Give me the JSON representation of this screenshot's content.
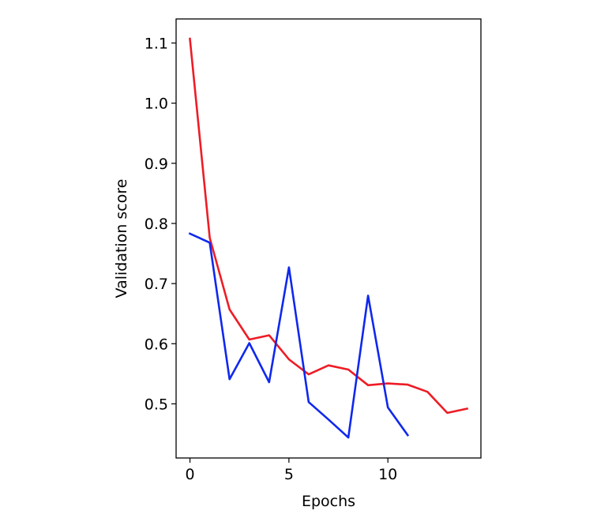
{
  "chart_data": {
    "type": "line",
    "xlabel": "Epochs",
    "ylabel": "Validation score",
    "xlim": [
      -0.7,
      14.7
    ],
    "ylim": [
      0.41,
      1.14
    ],
    "xticks": [
      0,
      5,
      10
    ],
    "yticks": [
      0.5,
      0.6,
      0.7,
      0.8,
      0.9,
      1.0,
      1.1
    ],
    "ytick_labels": [
      "0.5",
      "0.6",
      "0.7",
      "0.8",
      "0.9",
      "1.0",
      "1.1"
    ],
    "xtick_labels": [
      "0",
      "5",
      "10"
    ],
    "grid": false,
    "legend": "none",
    "series": [
      {
        "color": "#ee1c25",
        "x": [
          0,
          1,
          2,
          3,
          4,
          5,
          6,
          7,
          8,
          9,
          10,
          11,
          12,
          13,
          14
        ],
        "y": [
          1.107,
          0.776,
          0.657,
          0.607,
          0.614,
          0.574,
          0.549,
          0.564,
          0.557,
          0.531,
          0.534,
          0.532,
          0.52,
          0.485,
          0.492
        ]
      },
      {
        "color": "#0f28ee",
        "x": [
          0,
          1,
          2,
          3,
          4,
          5,
          6,
          7,
          8,
          9,
          10,
          11
        ],
        "y": [
          0.783,
          0.768,
          0.541,
          0.601,
          0.536,
          0.727,
          0.503,
          0.474,
          0.444,
          0.68,
          0.494,
          0.448
        ]
      }
    ]
  }
}
